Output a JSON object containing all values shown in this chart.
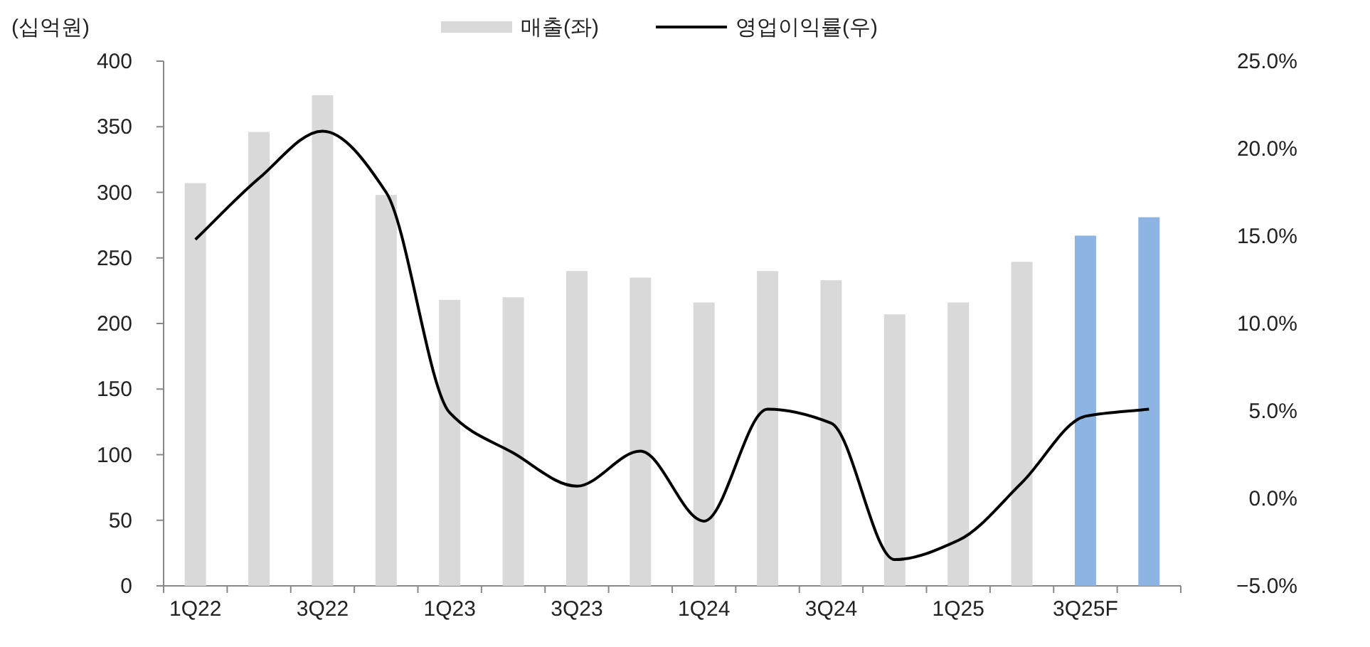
{
  "chart_data": {
    "type": "bar",
    "ylabel": "(십억원)",
    "legend": "top",
    "categories": [
      "1Q22",
      null,
      "3Q22",
      null,
      "1Q23",
      null,
      "3Q23",
      null,
      "1Q24",
      null,
      "3Q24",
      null,
      "1Q25",
      null,
      "3Q25F",
      null
    ],
    "series": [
      {
        "name": "매출(좌)",
        "color": "#d9d9d9",
        "colors": [
          "#d9d9d9",
          "#d9d9d9",
          "#d9d9d9",
          "#d9d9d9",
          "#d9d9d9",
          "#d9d9d9",
          "#d9d9d9",
          "#d9d9d9",
          "#d9d9d9",
          "#d9d9d9",
          "#d9d9d9",
          "#d9d9d9",
          "#d9d9d9",
          "#d9d9d9",
          "#8db4e2",
          "#8db4e2"
        ],
        "values": [
          307,
          346,
          374,
          298,
          218,
          220,
          240,
          235,
          216,
          240,
          233,
          207,
          216,
          247,
          267,
          281
        ]
      },
      {
        "name": "영업이익률(우)",
        "type": "line",
        "axis": "y2",
        "color": "#000000",
        "values": [
          14.8,
          18.3,
          21.0,
          17.5,
          4.9,
          2.6,
          0.7,
          2.7,
          -1.3,
          5.1,
          4.3,
          -3.5,
          -2.4,
          0.9,
          4.7,
          5.1
        ]
      }
    ],
    "ylim": [
      0,
      400
    ],
    "yticks": [
      0,
      50,
      100,
      150,
      200,
      250,
      300,
      350,
      400
    ],
    "y2lim": [
      -5,
      25
    ],
    "y2ticks": [
      {
        "value": -5,
        "label": "−5.0%"
      },
      {
        "value": 0,
        "label": "0.0%"
      },
      {
        "value": 5,
        "label": "5.0%"
      },
      {
        "value": 10,
        "label": "10.0%"
      },
      {
        "value": 15,
        "label": "15.0%"
      },
      {
        "value": 20,
        "label": "20.0%"
      },
      {
        "value": 25,
        "label": "25.0%"
      }
    ]
  }
}
